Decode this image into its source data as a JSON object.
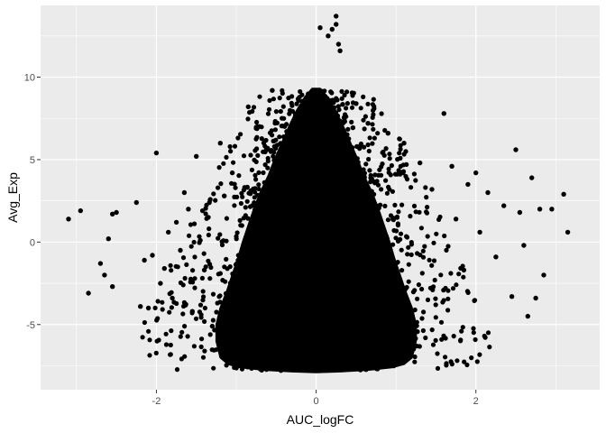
{
  "chart_data": {
    "type": "scatter",
    "xlabel": "AUC_logFC",
    "ylabel": "Avg_Exp",
    "xlim": [
      -3.45,
      3.55
    ],
    "ylim": [
      -8.95,
      14.35
    ],
    "x_ticks": [
      -2,
      0,
      2
    ],
    "y_ticks": [
      -5,
      0,
      5,
      10
    ],
    "x_tick_labels": [
      "-2",
      "0",
      "2"
    ],
    "y_tick_labels": [
      "-5",
      "0",
      "5",
      "10"
    ],
    "grid": true,
    "panel_color": "#ebebeb",
    "gridline_color": "#ffffff",
    "point_color": "#000000",
    "points": [
      [
        -3.1,
        1.4
      ],
      [
        -2.95,
        1.9
      ],
      [
        -2.85,
        -3.1
      ],
      [
        -2.7,
        -1.3
      ],
      [
        -2.65,
        -2.0
      ],
      [
        -2.6,
        0.2
      ],
      [
        -2.55,
        -2.7
      ],
      [
        -2.55,
        1.7
      ],
      [
        -2.5,
        1.8
      ],
      [
        -2.25,
        2.4
      ],
      [
        -2.2,
        -3.9
      ],
      [
        -2.15,
        -1.1
      ],
      [
        -2.1,
        -4.0
      ],
      [
        -2.05,
        -0.8
      ],
      [
        -2.0,
        5.4
      ],
      [
        -1.95,
        -2.5
      ],
      [
        -1.9,
        -1.6
      ],
      [
        -1.85,
        0.6
      ],
      [
        -1.8,
        -3.4
      ],
      [
        -1.75,
        1.2
      ],
      [
        -1.7,
        -0.5
      ],
      [
        -1.65,
        3.0
      ],
      [
        -1.6,
        2.0
      ],
      [
        -1.55,
        -4.2
      ],
      [
        -1.5,
        5.2
      ],
      [
        -1.45,
        0.1
      ],
      [
        -1.4,
        -1.7
      ],
      [
        -1.35,
        1.5
      ],
      [
        -1.3,
        -5.1
      ],
      [
        -1.2,
        6.0
      ],
      [
        -1.15,
        2.8
      ],
      [
        -1.1,
        -6.3
      ],
      [
        -1.05,
        4.2
      ],
      [
        -0.85,
        8.2
      ],
      [
        -0.75,
        6.9
      ],
      [
        -0.55,
        9.2
      ],
      [
        0.05,
        13.0
      ],
      [
        0.15,
        12.5
      ],
      [
        0.2,
        12.9
      ],
      [
        0.25,
        13.7
      ],
      [
        0.25,
        13.2
      ],
      [
        0.28,
        12.0
      ],
      [
        0.3,
        11.6
      ],
      [
        0.5,
        8.4
      ],
      [
        0.65,
        7.2
      ],
      [
        0.9,
        6.6
      ],
      [
        1.1,
        6.0
      ],
      [
        1.3,
        4.8
      ],
      [
        1.45,
        3.2
      ],
      [
        1.6,
        7.8
      ],
      [
        1.7,
        4.6
      ],
      [
        1.75,
        1.4
      ],
      [
        1.85,
        -1.7
      ],
      [
        1.9,
        3.5
      ],
      [
        2.0,
        4.2
      ],
      [
        2.05,
        0.6
      ],
      [
        2.15,
        3.0
      ],
      [
        2.25,
        -0.9
      ],
      [
        2.35,
        2.2
      ],
      [
        2.45,
        -3.3
      ],
      [
        2.5,
        5.6
      ],
      [
        2.55,
        1.8
      ],
      [
        2.6,
        -0.2
      ],
      [
        2.65,
        -4.5
      ],
      [
        2.7,
        3.9
      ],
      [
        2.75,
        -3.4
      ],
      [
        2.8,
        2.0
      ],
      [
        2.85,
        -2.0
      ],
      [
        2.95,
        2.0
      ],
      [
        3.1,
        2.9
      ],
      [
        3.15,
        0.6
      ]
    ]
  }
}
